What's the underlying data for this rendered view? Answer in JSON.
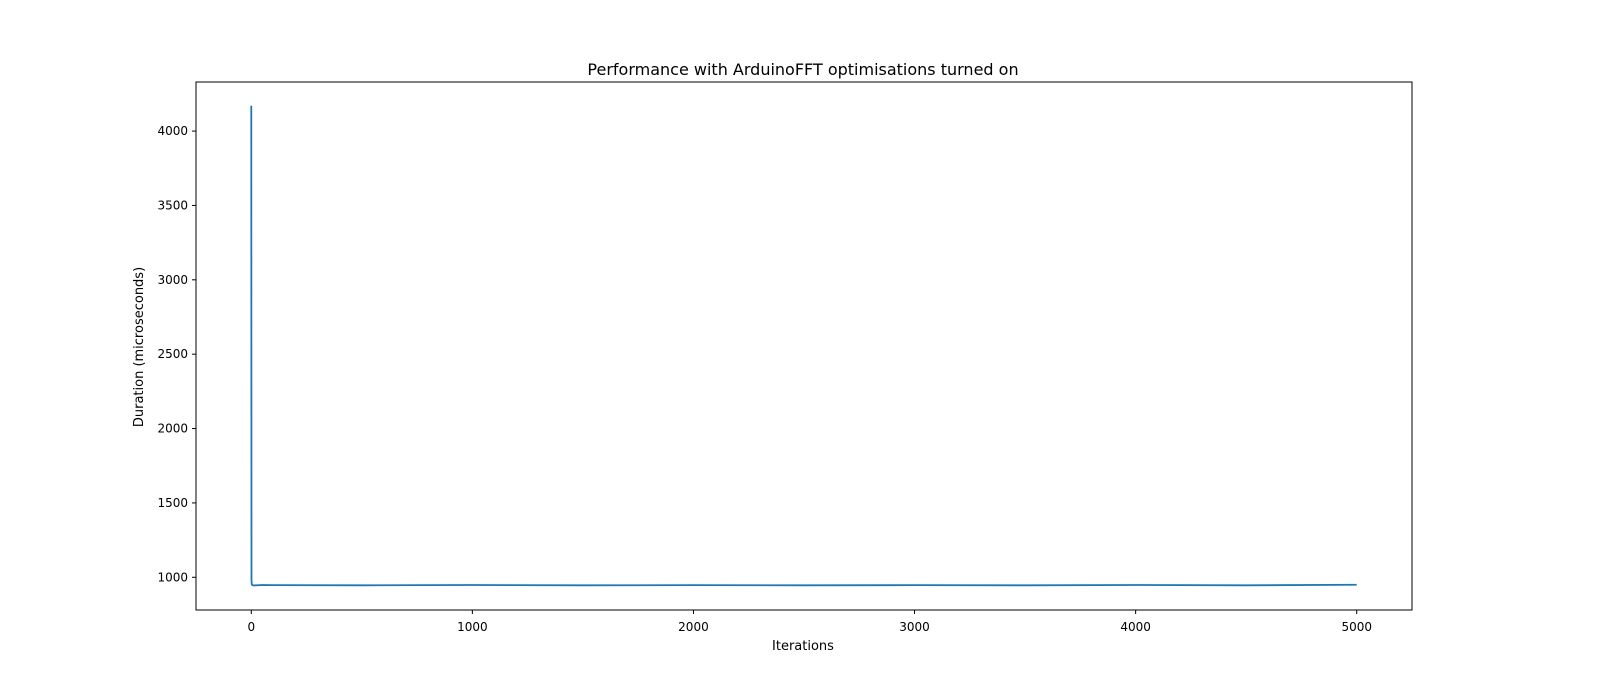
{
  "chart_data": {
    "type": "line",
    "title": "Performance with ArduinoFFT optimisations turned on",
    "xlabel": "Iterations",
    "ylabel": "Duration (microseconds)",
    "xlim": [
      -250,
      5250
    ],
    "ylim": [
      780,
      4330
    ],
    "xticks": [
      0,
      1000,
      2000,
      3000,
      4000,
      5000
    ],
    "yticks": [
      1000,
      1500,
      2000,
      2500,
      3000,
      3500,
      4000
    ],
    "grid": false,
    "series": [
      {
        "color": "#1f77b4",
        "x": [
          0,
          1,
          2,
          3,
          5,
          10,
          50,
          100,
          500,
          1000,
          1500,
          2000,
          2500,
          3000,
          3500,
          4000,
          4500,
          5000
        ],
        "y": [
          4170,
          980,
          955,
          950,
          948,
          945,
          948,
          947,
          946,
          948,
          946,
          947,
          946,
          947,
          946,
          948,
          946,
          950
        ]
      }
    ]
  }
}
